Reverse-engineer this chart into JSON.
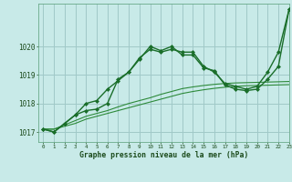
{
  "hours": [
    0,
    1,
    2,
    3,
    4,
    5,
    6,
    7,
    8,
    9,
    10,
    11,
    12,
    13,
    14,
    15,
    16,
    17,
    18,
    19,
    20,
    21,
    22,
    23
  ],
  "line1": [
    1017.1,
    1017.0,
    1017.3,
    1017.6,
    1017.75,
    1017.8,
    1018.0,
    1018.85,
    1019.1,
    1019.55,
    1020.0,
    1019.85,
    1020.0,
    1019.7,
    1019.7,
    1019.25,
    1019.15,
    1018.65,
    1018.5,
    1018.45,
    1018.5,
    1018.85,
    1019.3,
    1021.3
  ],
  "line2": [
    1017.1,
    1017.0,
    1017.3,
    1017.6,
    1018.0,
    1018.1,
    1018.5,
    1018.8,
    1019.1,
    1019.6,
    1019.9,
    1019.8,
    1019.9,
    1019.8,
    1019.8,
    1019.3,
    1019.1,
    1018.7,
    1018.6,
    1018.5,
    1018.6,
    1019.1,
    1019.8,
    1021.3
  ],
  "line3": [
    1017.1,
    1017.1,
    1017.2,
    1017.3,
    1017.45,
    1017.55,
    1017.65,
    1017.75,
    1017.85,
    1017.95,
    1018.05,
    1018.15,
    1018.25,
    1018.35,
    1018.42,
    1018.48,
    1018.53,
    1018.57,
    1018.6,
    1018.62,
    1018.63,
    1018.64,
    1018.65,
    1018.66
  ],
  "line4": [
    1017.1,
    1017.1,
    1017.25,
    1017.4,
    1017.55,
    1017.65,
    1017.75,
    1017.88,
    1018.0,
    1018.1,
    1018.2,
    1018.32,
    1018.42,
    1018.52,
    1018.58,
    1018.63,
    1018.67,
    1018.7,
    1018.72,
    1018.73,
    1018.74,
    1018.75,
    1018.76,
    1018.77
  ],
  "bg_color": "#c8eae8",
  "grid_color": "#a0c8c8",
  "line_color_main": "#1a6e2a",
  "line_color_flat": "#2d8a3a",
  "ylabel_vals": [
    1017,
    1018,
    1019,
    1020
  ],
  "xlabel": "Graphe pression niveau de la mer (hPa)",
  "ylim": [
    1016.65,
    1021.5
  ],
  "xlim": [
    -0.5,
    23
  ]
}
